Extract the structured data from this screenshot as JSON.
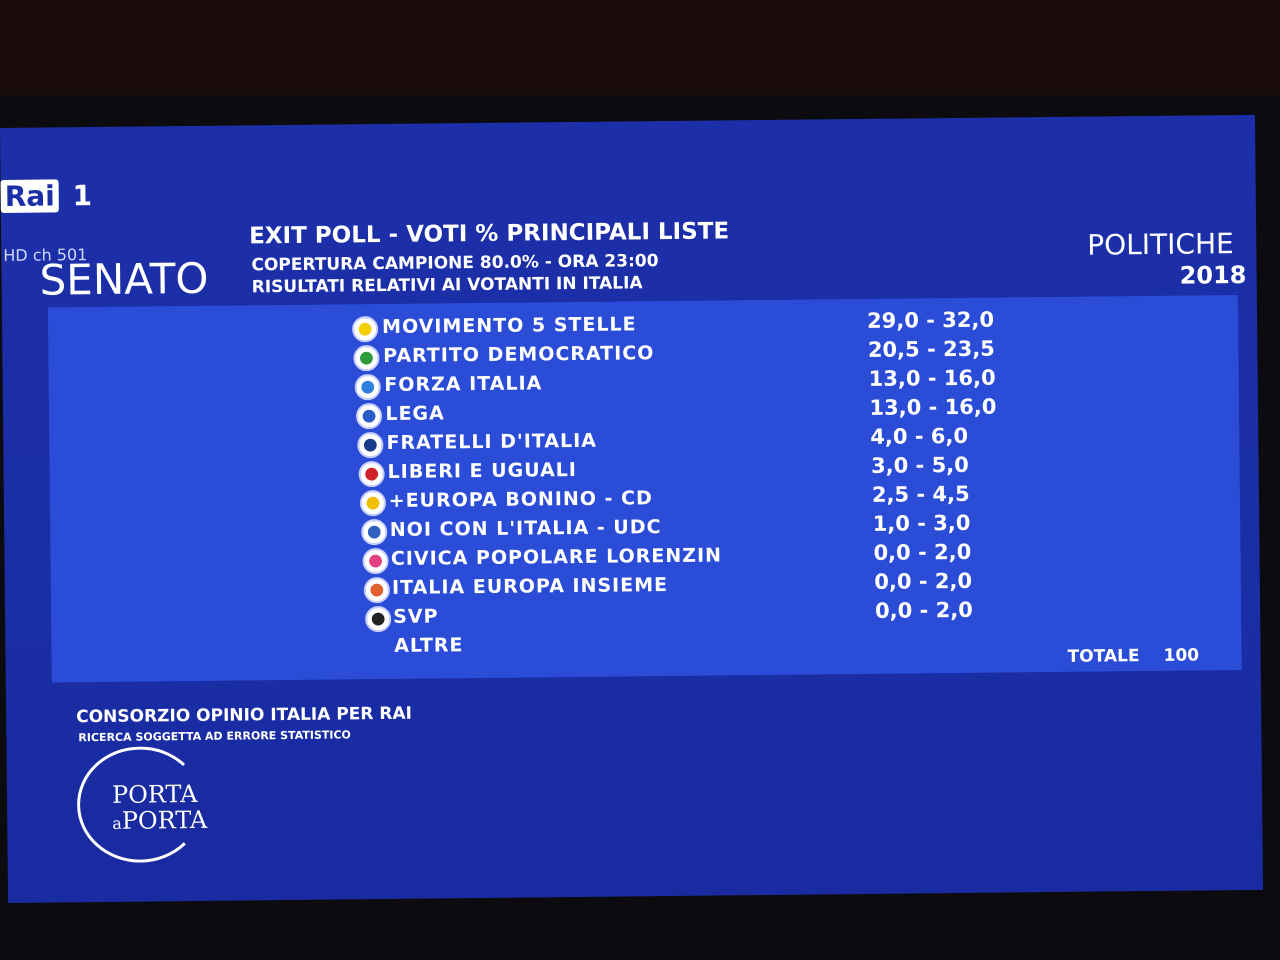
{
  "header": {
    "channel": "Rai",
    "channel_number": "1",
    "hd": "HD ch 501",
    "chamber": "SENATO",
    "title": "EXIT POLL - VOTI % PRINCIPALI LISTE",
    "coverage": "COPERTURA CAMPIONE 80.0% - ORA 23:00",
    "note": "RISULTATI RELATIVI AI VOTANTI IN ITALIA",
    "election": "POLITICHE",
    "year": "2018"
  },
  "table": {
    "rows": [
      [
        "MOVIMENTO 5 STELLE",
        "29,0 - 32,0"
      ],
      [
        "PARTITO DEMOCRATICO",
        "20,5 - 23,5"
      ],
      [
        "FORZA ITALIA",
        "13,0 - 16,0"
      ],
      [
        "LEGA",
        "13,0 - 16,0"
      ],
      [
        "FRATELLI D'ITALIA",
        "4,0 - 6,0"
      ],
      [
        "LIBERI E UGUALI",
        "3,0 - 5,0"
      ],
      [
        "+EUROPA BONINO - CD",
        "2,5 - 4,5"
      ],
      [
        "NOI CON L'ITALIA - UDC",
        "1,0 - 3,0"
      ],
      [
        "CIVICA POPOLARE LORENZIN",
        "0,0 - 2,0"
      ],
      [
        "ITALIA EUROPA INSIEME",
        "0,0 - 2,0"
      ],
      [
        "SVP",
        "0,0 - 2,0"
      ],
      [
        "ALTRE"
      ]
    ],
    "total_label": "TOTALE",
    "total": 100
  },
  "footer": {
    "source": "CONSORZIO OPINIO ITALIA PER RAI",
    "disclaimer": "RICERCA SOGGETTA AD ERRORE STATISTICO",
    "show_top": "PORTA",
    "show_mid": "a",
    "show_bottom": "PORTA"
  }
}
